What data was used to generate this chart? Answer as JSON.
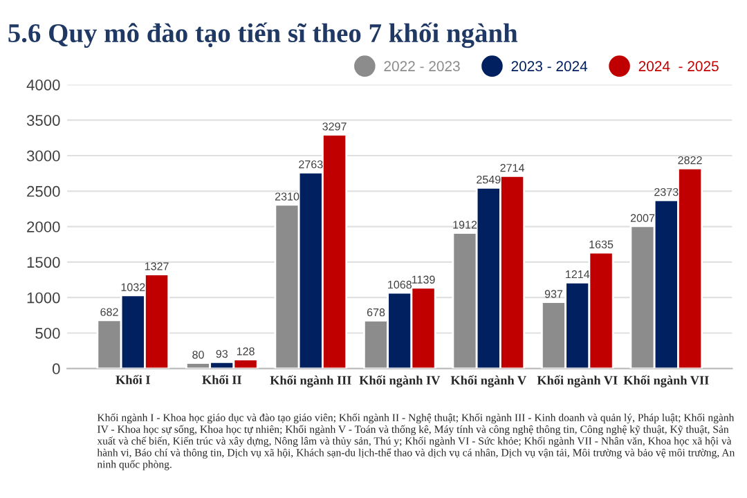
{
  "chart_data": {
    "type": "bar",
    "title": "5.6 Quy mô đào tạo tiến sĩ theo 7 khối ngành",
    "categories": [
      "Khối I",
      "Khối II",
      "Khối ngành III",
      "Khối ngành IV",
      "Khối ngành V",
      "Khối ngành VI",
      "Khối ngành VII"
    ],
    "series": [
      {
        "name": "2022 - 2023",
        "color": "#8c8c8c",
        "values": [
          682,
          80,
          2310,
          678,
          1912,
          937,
          2007
        ]
      },
      {
        "name": "2023 - 2024",
        "color": "#002060",
        "values": [
          1032,
          93,
          2763,
          1068,
          2549,
          1214,
          2373
        ]
      },
      {
        "name": "2024  - 2025",
        "color": "#c00000",
        "values": [
          1327,
          128,
          3297,
          1139,
          2714,
          1635,
          2822
        ]
      }
    ],
    "ylim": [
      0,
      4000
    ],
    "yticks": [
      0,
      500,
      1000,
      1500,
      2000,
      2500,
      3000,
      3500,
      4000
    ],
    "grid": "y",
    "legend": "top right",
    "data_labels": true,
    "annotations": [
      "Khối ngành I - Khoa học giáo dục và đào tạo giáo viên; Khối ngành II - Nghệ thuật; Khối ngành III - Kinh doanh và quản lý, Pháp luật; Khối ngành IV - Khoa học sự sống, Khoa học tự nhiên; Khối ngành V - Toán và thống kê, Máy tính và công nghệ thông tin, Công nghệ kỹ thuật, Kỹ thuật, Sản xuất và chế biến, Kiến trúc và xây dựng, Nông lâm và thủy sản, Thú y; Khối ngành VI - Sức khỏe; Khối ngành VII - Nhân văn, Khoa học xã hội và hành vi, Báo chí và thông tin, Dịch vụ xã hội, Khách sạn-du lịch-thể thao và dịch vụ cá nhân, Dịch vụ vận tải, Môi trường và bảo vệ môi trường, An ninh quốc phòng."
    ]
  }
}
